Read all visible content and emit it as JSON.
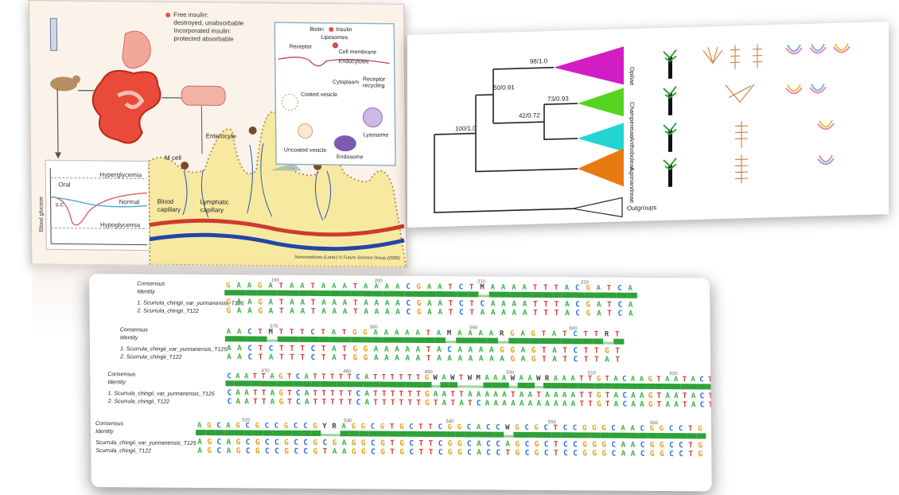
{
  "insulin_figure": {
    "legend_free": "Free insulin:",
    "legend_free_2": "destroyed, unabsorbable",
    "legend_inc": "Incorporated insulin:",
    "legend_inc_2": "protected absorbable",
    "biotin": "Biotin",
    "insulin": "Insulin",
    "liposomes": "Liposomes",
    "receptor": "Receptor",
    "cell_membrane": "Cell membrane",
    "endocytosis": "Endocytosis",
    "cytoplasm": "Cytoplasm",
    "receptor_recycling": "Receptor",
    "receptor_recycling_2": "recycling",
    "coated_vesicle": "Coated vesicle",
    "uncoated_vesicle": "Uncoated vesicle",
    "endosome": "Endosome",
    "lysosome": "Lysosome",
    "m_cell": "M cell",
    "enterocyte": "Enterocyte",
    "blood_capillary": "Blood",
    "blood_capillary_2": "capillary",
    "lymphatic_capillary": "Lymphatic",
    "lymphatic_capillary_2": "capillary",
    "hyperglycemia": "Hyperglycemia",
    "normal": "Normal",
    "hypoglycemia": "Hypoglycemia",
    "oral": "Oral",
    "sc": "s.c",
    "ylabel": "Blood glucose",
    "credit": "Nanomedicine (Lond.) © Future Science Group (2006)"
  },
  "phylogeny": {
    "support": [
      "98/1.0",
      "50/0.91",
      "73/0.93",
      "42/0.72",
      "100/1.0"
    ],
    "clades": [
      "Opiliae",
      "Champereiae",
      "Anthoboleae",
      "Agonandreae"
    ],
    "outgroups": "Outgroups",
    "colors": {
      "Opiliae": "#d21cc4",
      "Champereiae": "#55d420",
      "Anthoboleae": "#21d6d0",
      "Agonandreae": "#e87a12"
    }
  },
  "alignment": {
    "blocks": [
      {
        "labels": [
          "Consensus",
          "Identity",
          "1. Scurrula_chingii_var_yunnanensis_T125",
          "2. Scurrula_chingii_T122"
        ],
        "ticks": [
          "190",
          "200",
          "210",
          "220"
        ],
        "consensus": "GAAGATAATAAATAAAACGAATCTMAAAATTTACGATCA",
        "seq1": "GAAGATAATAAATAAAACGAATCTCAAAATTTACGATCA",
        "seq2": "GAAGATAATAAATAAAACGAATCTAAAAATTTACGATCA"
      },
      {
        "labels": [
          "Consensus",
          "Identity",
          "1. Scurrula_chingii_var_yunnanensis_T125",
          "2. Scurrula_chingii_T122"
        ],
        "ticks": [
          "570",
          "580",
          "590",
          "600"
        ],
        "consensus": "AACTMTTTCTATGGAAAAATAMAAAARGAGTATCTTRT",
        "seq1": "AACTCTTTCTATGGAAAAATACAAAAGGAGTATCTTGT",
        "seq2": "AACTATTTCTATGGAAAAATAAAAAAAGAGTATCTTAT"
      },
      {
        "labels": [
          "Consensus",
          "Identity",
          "1. Scurrula_chingii_var_yunnanensis_T125",
          "2. Scurrula_chingii_T122"
        ],
        "ticks": [
          "470",
          "480",
          "490",
          "500",
          "510",
          "520"
        ],
        "consensus": "CAATTAGTCATTTTTCATTTTTTGWAWTWMAAAWAAWRAAATTGTACAAGTAATACT",
        "seq1": "CAATTAGTCATTTTTCATTTTTTGAATTAAAAATAATAAAATTGTACAAGTAATACT",
        "seq2": "CAATTAGTCATTTTTCATTTTTTGTATATCAAAAAAAAAAATTGTACAAGTAATACT"
      },
      {
        "labels": [
          "Consensus",
          "Identity",
          "Scurrula_chingii_var_yunnanensis_T125",
          "Scurrula_chingii_T122"
        ],
        "ticks": [
          "520",
          "530",
          "540",
          "550",
          "560"
        ],
        "consensus": "AGCAGCGCCGCCGYRAGGCGTGCTTCGGCACCWGCGCTCCGGGCAACGGCCTG",
        "seq1": "AGCAGCGCCGCCGCGAGGCGTGCTTCGGCACCAGCGCTCCGGGCAACGGCCTG",
        "seq2": "AGCAGCGCCGCCGTAAGGCGTGCTTCGGCACCTGCGCTCCGGGCAACGGCCTG"
      }
    ]
  }
}
